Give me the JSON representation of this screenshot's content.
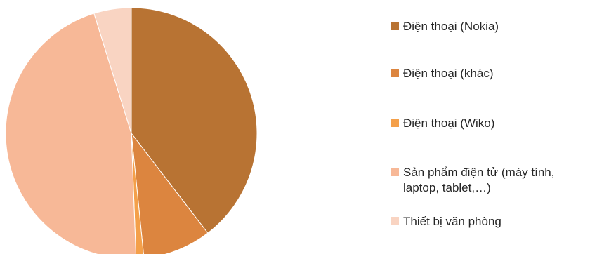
{
  "chart_data": {
    "type": "pie",
    "title": "",
    "slices": [
      {
        "label": "Điện thoại (Nokia)",
        "value": 39.6,
        "color": "#b87333"
      },
      {
        "label": "Điện thoại (khác)",
        "value": 8.8,
        "color": "#dc853f"
      },
      {
        "label": "Điện thoại (Wiko)",
        "value": 1.0,
        "color": "#f4a04a"
      },
      {
        "label": "Sản phẩm điện tử (máy tính, laptop, tablet,…)",
        "label_lines": [
          "Sản phẩm điện tử (máy tính,",
          "laptop, tablet,…)"
        ],
        "value": 45.8,
        "color": "#f7b897"
      },
      {
        "label": "Thiết bị văn phòng",
        "value": 4.8,
        "color": "#f9d4c2"
      }
    ],
    "legend_position": "right"
  }
}
